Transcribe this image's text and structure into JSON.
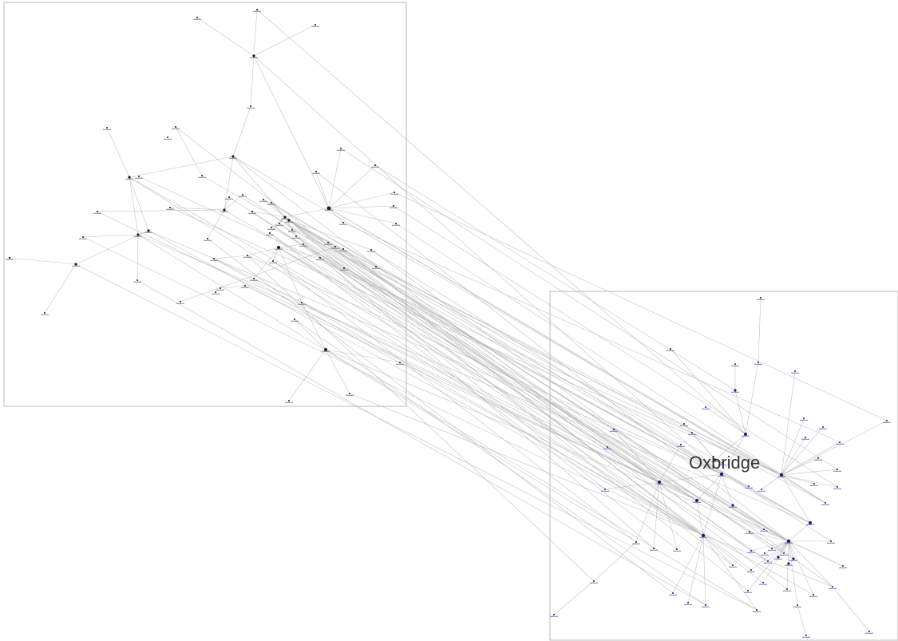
{
  "clusters": [
    {
      "id": "left",
      "title": ""
    },
    {
      "id": "right",
      "title": "Oxbridge"
    }
  ],
  "colors": {
    "edge": "#b9b9b9",
    "frame": "#b8b8b8",
    "left_node": "#1a1a1a",
    "right_node": "#1c1c6e",
    "title": "#333333"
  }
}
